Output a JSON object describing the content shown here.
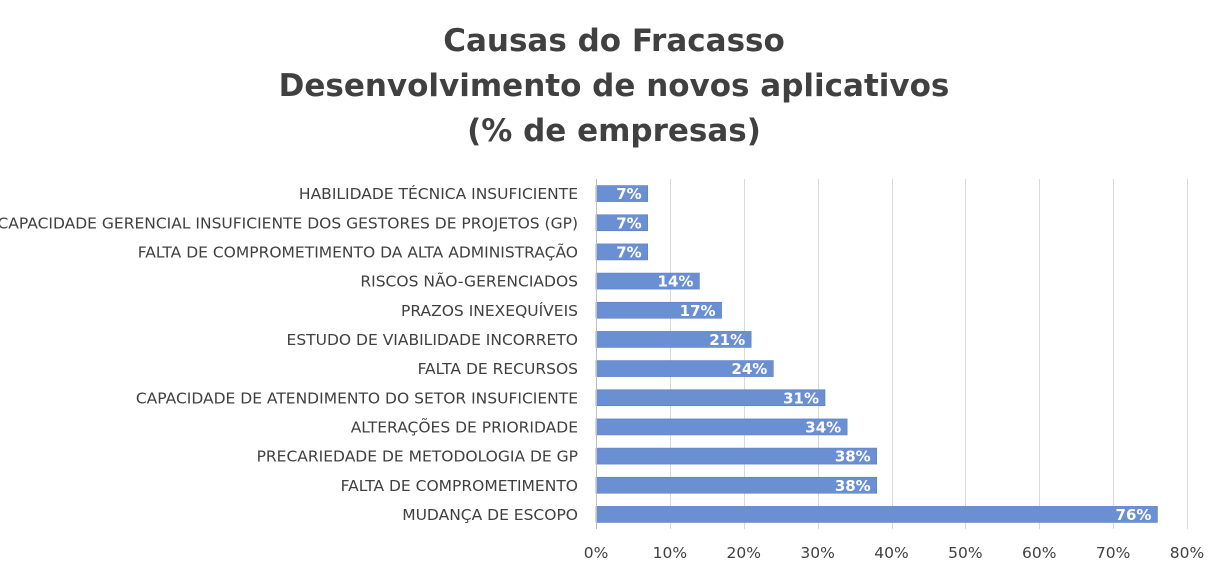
{
  "chart_data": {
    "type": "bar",
    "orientation": "horizontal",
    "title": [
      "Causas do Fracasso",
      "Desenvolvimento de novos aplicativos",
      "(% de empresas)"
    ],
    "categories": [
      "HABILIDADE TÉCNICA INSUFICIENTE",
      "CAPACIDADE GERENCIAL INSUFICIENTE DOS GESTORES DE PROJETOS (GP)",
      "FALTA DE COMPROMETIMENTO DA ALTA ADMINISTRAÇÃO",
      "RISCOS NÃO-GERENCIADOS",
      "PRAZOS INEXEQUÍVEIS",
      "ESTUDO DE VIABILIDADE INCORRETO",
      "FALTA DE RECURSOS",
      "CAPACIDADE DE ATENDIMENTO DO SETOR INSUFICIENTE",
      "ALTERAÇÕES DE PRIORIDADE",
      "PRECARIEDADE DE METODOLOGIA DE GP",
      "FALTA DE COMPROMETIMENTO",
      "MUDANÇA DE ESCOPO"
    ],
    "values": [
      7,
      7,
      7,
      14,
      17,
      21,
      24,
      31,
      34,
      38,
      38,
      76
    ],
    "data_labels": [
      "7%",
      "7%",
      "7%",
      "14%",
      "17%",
      "21%",
      "24%",
      "31%",
      "34%",
      "38%",
      "38%",
      "76%"
    ],
    "xlim": [
      0,
      80
    ],
    "x_ticks": [
      0,
      10,
      20,
      30,
      40,
      50,
      60,
      70,
      80
    ],
    "x_tick_labels": [
      "0%",
      "10%",
      "20%",
      "30%",
      "40%",
      "50%",
      "60%",
      "70%",
      "80%"
    ],
    "xlabel": "",
    "ylabel": "",
    "grid": "vertical",
    "legend": "none",
    "colors": {
      "bar": "#6a8fd3",
      "bar_edge": "#5b7fc4",
      "text": "#404040",
      "grid": "#d9d9d9",
      "data_label": "#ffffff"
    }
  }
}
